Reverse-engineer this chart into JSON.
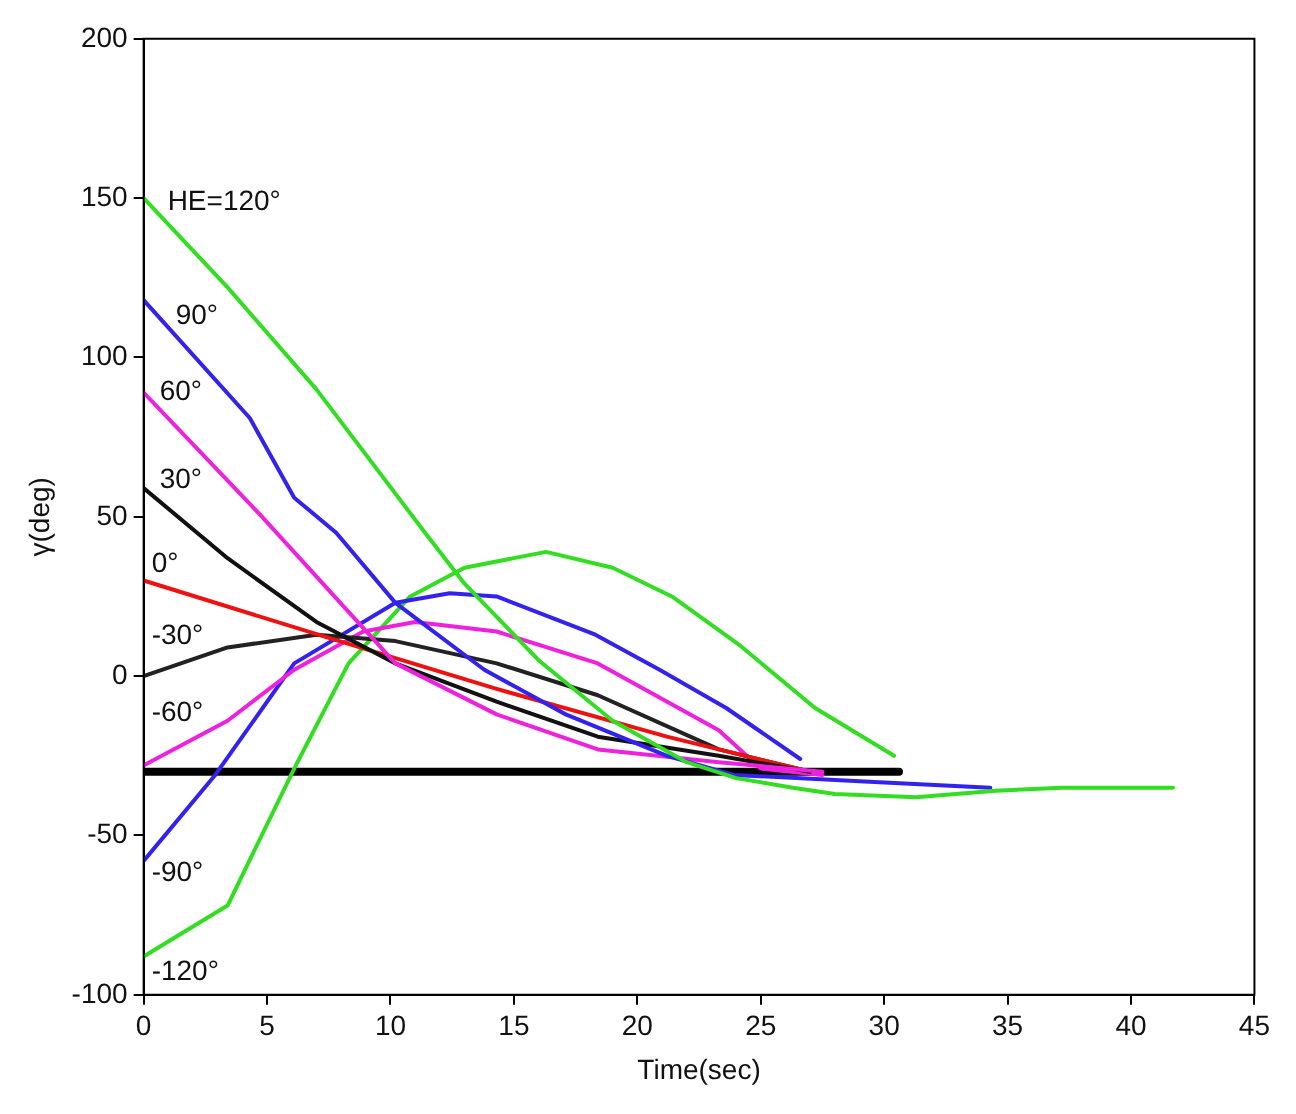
{
  "chart_data": {
    "type": "line",
    "xlabel": "Time(sec)",
    "ylabel": "γ(deg)",
    "xlim": [
      0,
      45
    ],
    "xticks": [
      0,
      5,
      10,
      15,
      20,
      25,
      30,
      35,
      40,
      45
    ],
    "ylim": [
      -100,
      200
    ],
    "yticks": [
      -100,
      -50,
      0,
      50,
      100,
      150,
      200
    ],
    "grid": false,
    "legend": false,
    "marker": "none",
    "line_style": "solid",
    "series": [
      {
        "name": "HE=120°",
        "color": "#33dd22",
        "x": [
          0,
          3.4,
          7,
          11.4,
          13,
          16,
          19,
          22,
          24,
          26.3,
          28,
          31.3,
          34.5,
          37.2,
          41.7
        ],
        "values": [
          150,
          122,
          90,
          45,
          29,
          5,
          -14,
          -27,
          -32,
          -35,
          -37,
          -38,
          -36,
          -35,
          -35
        ]
      },
      {
        "name": "90°",
        "color": "#3322ee",
        "x": [
          0,
          4.3,
          6.1,
          7.8,
          10.2,
          13.8,
          17.1,
          21.2,
          23.9,
          29,
          34.3
        ],
        "values": [
          118,
          81,
          56,
          45,
          23,
          2,
          -12,
          -25,
          -31,
          -33,
          -35
        ]
      },
      {
        "name": "60°",
        "color": "#ee22dd",
        "x": [
          0,
          4.8,
          7.5,
          10.2,
          14.3,
          18.4,
          23.3,
          27.5
        ],
        "values": [
          89,
          50,
          27,
          4,
          -12,
          -23,
          -27,
          -30
        ]
      },
      {
        "name": "30°",
        "color": "#111111",
        "x": [
          0,
          3.4,
          7,
          10.2,
          14.3,
          18.4,
          23.3,
          27
        ],
        "values": [
          59,
          37,
          17,
          4,
          -8,
          -19,
          -25,
          -30
        ]
      },
      {
        "name": "0°",
        "color": "#ee1111",
        "x": [
          0,
          7.5,
          14.3,
          21.2,
          27
        ],
        "values": [
          30,
          12,
          -4,
          -19,
          -30
        ]
      },
      {
        "name": "-30°",
        "color": "#222222",
        "x": [
          0,
          3.4,
          7,
          10.2,
          14.3,
          18.4,
          23.3,
          27
        ],
        "values": [
          0,
          9,
          13,
          11,
          4,
          -6,
          -23,
          -30
        ]
      },
      {
        "name": "-60°",
        "color": "#ee22dd",
        "x": [
          0,
          3.4,
          6.1,
          8.9,
          11,
          14.3,
          18.4,
          23.3,
          25,
          27.5
        ],
        "values": [
          -28,
          -14,
          2,
          14,
          17,
          14,
          4,
          -17,
          -29,
          -31
        ]
      },
      {
        "name": "-90°",
        "color": "#3322ee",
        "x": [
          0,
          2.9,
          6.1,
          10.2,
          12.4,
          14.3,
          18.3,
          20.9,
          23.6,
          26.6
        ],
        "values": [
          -58,
          -31,
          4,
          23,
          26,
          25,
          13,
          2,
          -10,
          -26
        ]
      },
      {
        "name": "-120°",
        "color": "#33dd22",
        "x": [
          0,
          3.4,
          6.1,
          8.3,
          10.8,
          13,
          16.3,
          19,
          21.4,
          24.1,
          27.2,
          30.4
        ],
        "values": [
          -88,
          -72,
          -29,
          4,
          25,
          34,
          39,
          34,
          25,
          10,
          -10,
          -25
        ]
      },
      {
        "color": "#000000",
        "x": [
          0,
          30.6
        ],
        "values": [
          -30,
          -30
        ]
      }
    ]
  }
}
